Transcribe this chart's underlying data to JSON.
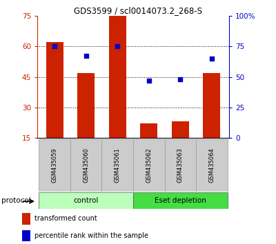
{
  "title": "GDS3599 / scl0014073.2_268-S",
  "samples": [
    "GSM435059",
    "GSM435060",
    "GSM435061",
    "GSM435062",
    "GSM435063",
    "GSM435064"
  ],
  "bar_values": [
    62,
    47,
    75,
    22,
    23,
    47
  ],
  "dot_values": [
    75,
    67,
    75,
    47,
    48,
    65
  ],
  "bar_color": "#cc2200",
  "dot_color": "#0000cc",
  "ylim_left": [
    15,
    75
  ],
  "ylim_right": [
    0,
    100
  ],
  "yticks_left": [
    15,
    30,
    45,
    60,
    75
  ],
  "yticks_right": [
    0,
    25,
    50,
    75,
    100
  ],
  "ytick_labels_right": [
    "0",
    "25",
    "50",
    "75",
    "100%"
  ],
  "groups": [
    {
      "label": "control",
      "start": 0,
      "end": 3,
      "color": "#bbffbb"
    },
    {
      "label": "Eset depletion",
      "start": 3,
      "end": 6,
      "color": "#44dd44"
    }
  ],
  "protocol_label": "protocol",
  "legend_items": [
    {
      "color": "#cc2200",
      "label": "transformed count"
    },
    {
      "color": "#0000cc",
      "label": "percentile rank within the sample"
    }
  ],
  "gridline_values": [
    60,
    45,
    30
  ],
  "bar_bottom": 15,
  "sample_label_box_color": "#cccccc",
  "sample_label_box_edge": "#999999"
}
